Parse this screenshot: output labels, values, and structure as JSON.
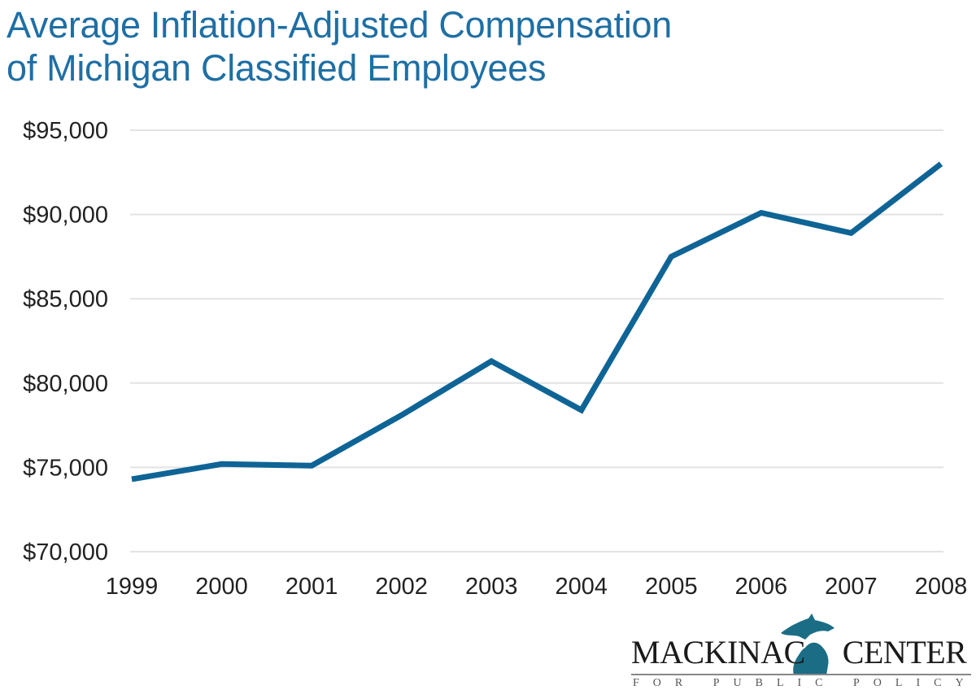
{
  "chart_data": {
    "type": "line",
    "title": "Average Inflation-Adjusted Compensation of Michigan Classified Employees",
    "title_lines": [
      "Average Inflation-Adjusted Compensation",
      "of Michigan Classified Employees"
    ],
    "xlabel": "",
    "ylabel": "",
    "categories": [
      "1999",
      "2000",
      "2001",
      "2002",
      "2003",
      "2004",
      "2005",
      "2006",
      "2007",
      "2008"
    ],
    "series": [
      {
        "name": "Average Inflation-Adjusted Compensation",
        "color": "#0f6496",
        "values": [
          74300,
          75200,
          75100,
          78100,
          81300,
          78400,
          87500,
          90100,
          88900,
          93000
        ]
      }
    ],
    "ylim": [
      70000,
      95000
    ],
    "yticks": [
      95000,
      90000,
      85000,
      80000,
      75000,
      70000
    ],
    "ytick_labels": [
      "$95,000",
      "$90,000",
      "$85,000",
      "$80,000",
      "$75,000",
      "$70,000"
    ],
    "grid": true,
    "legend": "none"
  },
  "colors": {
    "title": "#1f6fa4",
    "line": "#0f6496",
    "grid": "#e3e3e3",
    "logo_map": "#1b6d85"
  },
  "logo": {
    "name_left": "MACKINAC",
    "name_right": "CENTER",
    "tagline": "FOR PUBLIC POLICY"
  }
}
